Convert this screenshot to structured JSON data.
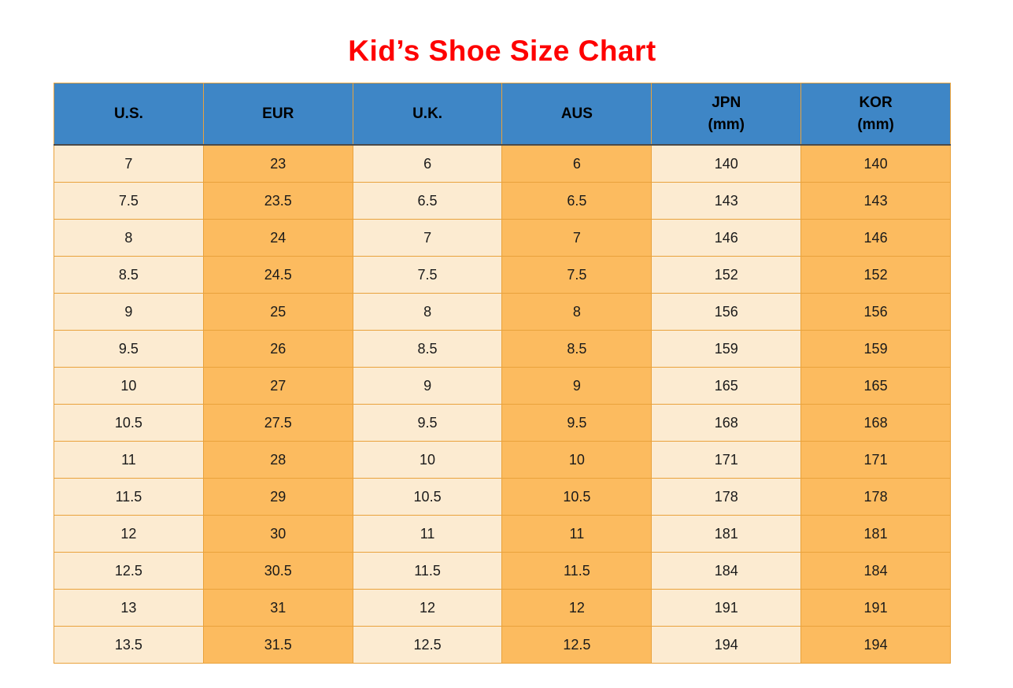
{
  "page": {
    "title": "Kid’s Shoe Size Chart"
  },
  "colors": {
    "title_red": "#fe0000",
    "header_blue": "#3e86c6",
    "column_light": "#fcebd1",
    "column_orange": "#fcbb5f",
    "grid_border": "#e9a23c"
  },
  "table": {
    "headers": [
      {
        "line1": "U.S.",
        "line2": ""
      },
      {
        "line1": "EUR",
        "line2": ""
      },
      {
        "line1": "U.K.",
        "line2": ""
      },
      {
        "line1": "AUS",
        "line2": ""
      },
      {
        "line1": "JPN",
        "line2": "(mm)"
      },
      {
        "line1": "KOR",
        "line2": "(mm)"
      }
    ],
    "rows": [
      [
        "7",
        "23",
        "6",
        "6",
        "140",
        "140"
      ],
      [
        "7.5",
        "23.5",
        "6.5",
        "6.5",
        "143",
        "143"
      ],
      [
        "8",
        "24",
        "7",
        "7",
        "146",
        "146"
      ],
      [
        "8.5",
        "24.5",
        "7.5",
        "7.5",
        "152",
        "152"
      ],
      [
        "9",
        "25",
        "8",
        "8",
        "156",
        "156"
      ],
      [
        "9.5",
        "26",
        "8.5",
        "8.5",
        "159",
        "159"
      ],
      [
        "10",
        "27",
        "9",
        "9",
        "165",
        "165"
      ],
      [
        "10.5",
        "27.5",
        "9.5",
        "9.5",
        "168",
        "168"
      ],
      [
        "11",
        "28",
        "10",
        "10",
        "171",
        "171"
      ],
      [
        "11.5",
        "29",
        "10.5",
        "10.5",
        "178",
        "178"
      ],
      [
        "12",
        "30",
        "11",
        "11",
        "181",
        "181"
      ],
      [
        "12.5",
        "30.5",
        "11.5",
        "11.5",
        "184",
        "184"
      ],
      [
        "13",
        "31",
        "12",
        "12",
        "191",
        "191"
      ],
      [
        "13.5",
        "31.5",
        "12.5",
        "12.5",
        "194",
        "194"
      ]
    ]
  },
  "chart_data": {
    "type": "table",
    "title": "Kid’s Shoe Size Chart",
    "columns": [
      "U.S.",
      "EUR",
      "U.K.",
      "AUS",
      "JPN (mm)",
      "KOR (mm)"
    ],
    "rows": [
      [
        7,
        23,
        6,
        6,
        140,
        140
      ],
      [
        7.5,
        23.5,
        6.5,
        6.5,
        143,
        143
      ],
      [
        8,
        24,
        7,
        7,
        146,
        146
      ],
      [
        8.5,
        24.5,
        7.5,
        7.5,
        152,
        152
      ],
      [
        9,
        25,
        8,
        8,
        156,
        156
      ],
      [
        9.5,
        26,
        8.5,
        8.5,
        159,
        159
      ],
      [
        10,
        27,
        9,
        9,
        165,
        165
      ],
      [
        10.5,
        27.5,
        9.5,
        9.5,
        168,
        168
      ],
      [
        11,
        28,
        10,
        10,
        171,
        171
      ],
      [
        11.5,
        29,
        10.5,
        10.5,
        178,
        178
      ],
      [
        12,
        30,
        11,
        11,
        181,
        181
      ],
      [
        12.5,
        30.5,
        11.5,
        11.5,
        184,
        184
      ],
      [
        13,
        31,
        12,
        12,
        191,
        191
      ],
      [
        13.5,
        31.5,
        12.5,
        12.5,
        194,
        194
      ]
    ],
    "layout": {
      "grid": true,
      "header_background": "#3e86c6",
      "column_fill_pattern": [
        "#fcebd1",
        "#fcbb5f",
        "#fcebd1",
        "#fcbb5f",
        "#fcebd1",
        "#fcbb5f"
      ]
    }
  }
}
